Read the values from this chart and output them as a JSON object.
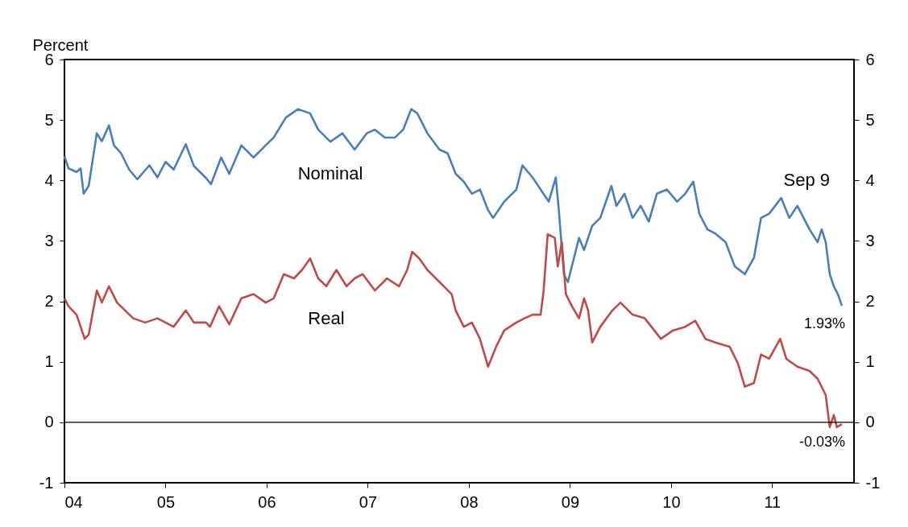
{
  "chart_data": {
    "type": "line",
    "ylabel": "Percent",
    "xlim": [
      2004,
      2011.81
    ],
    "xticks": [
      {
        "value": 2004,
        "label": "04"
      },
      {
        "value": 2005,
        "label": "05"
      },
      {
        "value": 2006,
        "label": "06"
      },
      {
        "value": 2007,
        "label": "07"
      },
      {
        "value": 2008,
        "label": "08"
      },
      {
        "value": 2009,
        "label": "09"
      },
      {
        "value": 2010,
        "label": "10"
      },
      {
        "value": 2011,
        "label": "11"
      }
    ],
    "ylim": [
      -1,
      6
    ],
    "yticks": [
      -1,
      0,
      1,
      2,
      3,
      4,
      5,
      6
    ],
    "y2lim": [
      -1,
      6
    ],
    "y2ticks": [
      -1,
      0,
      1,
      2,
      3,
      4,
      5,
      6
    ],
    "grid": false,
    "marker": "none",
    "line_style": "solid",
    "ref_lines": [
      {
        "axis": "y",
        "value": 0,
        "color": "#000000"
      }
    ],
    "annotations": [
      "Sep 9",
      {
        "text": "1.93%",
        "x": 2011.69,
        "y": 1.93
      },
      {
        "text": "-0.03%",
        "x": 2011.69,
        "y": -0.03
      }
    ],
    "series": [
      {
        "name": "Nominal",
        "color": "#4a7ebb",
        "x": [
          2004.0,
          2004.04,
          2004.12,
          2004.16,
          2004.19,
          2004.24,
          2004.32,
          2004.37,
          2004.44,
          2004.49,
          2004.56,
          2004.64,
          2004.72,
          2004.84,
          2004.92,
          2005.0,
          2005.08,
          2005.2,
          2005.28,
          2005.4,
          2005.45,
          2005.55,
          2005.63,
          2005.75,
          2005.87,
          2005.99,
          2006.07,
          2006.19,
          2006.31,
          2006.43,
          2006.51,
          2006.63,
          2006.75,
          2006.87,
          2006.99,
          2007.07,
          2007.17,
          2007.27,
          2007.35,
          2007.43,
          2007.49,
          2007.59,
          2007.71,
          2007.79,
          2007.87,
          2007.95,
          2008.03,
          2008.11,
          2008.19,
          2008.24,
          2008.35,
          2008.47,
          2008.53,
          2008.63,
          2008.71,
          2008.79,
          2008.86,
          2008.89,
          2008.94,
          2008.98,
          2009.04,
          2009.09,
          2009.14,
          2009.22,
          2009.3,
          2009.41,
          2009.46,
          2009.54,
          2009.62,
          2009.7,
          2009.78,
          2009.86,
          2009.96,
          2010.06,
          2010.14,
          2010.22,
          2010.28,
          2010.36,
          2010.44,
          2010.54,
          2010.63,
          2010.73,
          2010.82,
          2010.89,
          2010.97,
          2011.09,
          2011.17,
          2011.25,
          2011.37,
          2011.45,
          2011.49,
          2011.53,
          2011.57,
          2011.61,
          2011.65,
          2011.69
        ],
        "values": [
          4.4,
          4.2,
          4.14,
          4.2,
          3.78,
          3.91,
          4.78,
          4.65,
          4.91,
          4.58,
          4.45,
          4.18,
          4.02,
          4.25,
          4.05,
          4.31,
          4.18,
          4.6,
          4.24,
          4.04,
          3.94,
          4.38,
          4.11,
          4.58,
          4.38,
          4.58,
          4.71,
          5.04,
          5.18,
          5.11,
          4.84,
          4.64,
          4.78,
          4.51,
          4.78,
          4.84,
          4.71,
          4.71,
          4.84,
          5.18,
          5.11,
          4.78,
          4.51,
          4.45,
          4.11,
          3.98,
          3.78,
          3.85,
          3.51,
          3.38,
          3.65,
          3.85,
          4.25,
          4.05,
          3.85,
          3.65,
          4.05,
          3.51,
          2.45,
          2.32,
          2.72,
          3.05,
          2.85,
          3.25,
          3.38,
          3.91,
          3.58,
          3.78,
          3.38,
          3.58,
          3.32,
          3.78,
          3.85,
          3.65,
          3.78,
          3.98,
          3.45,
          3.19,
          3.12,
          2.98,
          2.58,
          2.45,
          2.72,
          3.38,
          3.45,
          3.71,
          3.38,
          3.58,
          3.19,
          2.98,
          3.19,
          2.98,
          2.45,
          2.25,
          2.12,
          1.93
        ]
      },
      {
        "name": "Real",
        "color": "#be4b48",
        "x": [
          2004.0,
          2004.04,
          2004.12,
          2004.2,
          2004.24,
          2004.32,
          2004.37,
          2004.44,
          2004.52,
          2004.6,
          2004.68,
          2004.8,
          2004.92,
          2005.0,
          2005.08,
          2005.2,
          2005.28,
          2005.4,
          2005.44,
          2005.53,
          2005.63,
          2005.75,
          2005.87,
          2005.99,
          2006.07,
          2006.17,
          2006.27,
          2006.35,
          2006.43,
          2006.51,
          2006.59,
          2006.69,
          2006.79,
          2006.87,
          2006.95,
          2007.07,
          2007.19,
          2007.31,
          2007.39,
          2007.44,
          2007.51,
          2007.59,
          2007.71,
          2007.83,
          2007.87,
          2007.95,
          2008.03,
          2008.11,
          2008.19,
          2008.27,
          2008.35,
          2008.47,
          2008.55,
          2008.63,
          2008.71,
          2008.74,
          2008.78,
          2008.85,
          2008.88,
          2008.92,
          2008.96,
          2009.02,
          2009.09,
          2009.14,
          2009.18,
          2009.22,
          2009.3,
          2009.42,
          2009.5,
          2009.62,
          2009.74,
          2009.9,
          2010.02,
          2010.14,
          2010.24,
          2010.34,
          2010.44,
          2010.58,
          2010.66,
          2010.73,
          2010.82,
          2010.89,
          2010.97,
          2011.08,
          2011.14,
          2011.25,
          2011.37,
          2011.45,
          2011.53,
          2011.57,
          2011.61,
          2011.64,
          2011.69
        ],
        "values": [
          2.05,
          1.92,
          1.78,
          1.38,
          1.45,
          2.18,
          1.98,
          2.25,
          1.98,
          1.85,
          1.72,
          1.65,
          1.72,
          1.65,
          1.58,
          1.85,
          1.65,
          1.65,
          1.58,
          1.92,
          1.62,
          2.05,
          2.12,
          1.98,
          2.05,
          2.45,
          2.38,
          2.52,
          2.71,
          2.38,
          2.25,
          2.52,
          2.25,
          2.38,
          2.45,
          2.18,
          2.38,
          2.25,
          2.52,
          2.82,
          2.71,
          2.52,
          2.32,
          2.12,
          1.85,
          1.58,
          1.65,
          1.38,
          0.92,
          1.25,
          1.52,
          1.65,
          1.72,
          1.78,
          1.78,
          2.18,
          3.11,
          3.05,
          2.58,
          2.98,
          2.12,
          1.92,
          1.72,
          2.05,
          1.85,
          1.32,
          1.58,
          1.85,
          1.98,
          1.78,
          1.72,
          1.38,
          1.52,
          1.58,
          1.68,
          1.38,
          1.32,
          1.25,
          0.98,
          0.59,
          0.65,
          1.12,
          1.05,
          1.38,
          1.05,
          0.92,
          0.85,
          0.72,
          0.45,
          -0.08,
          0.12,
          -0.08,
          -0.03
        ]
      }
    ]
  }
}
